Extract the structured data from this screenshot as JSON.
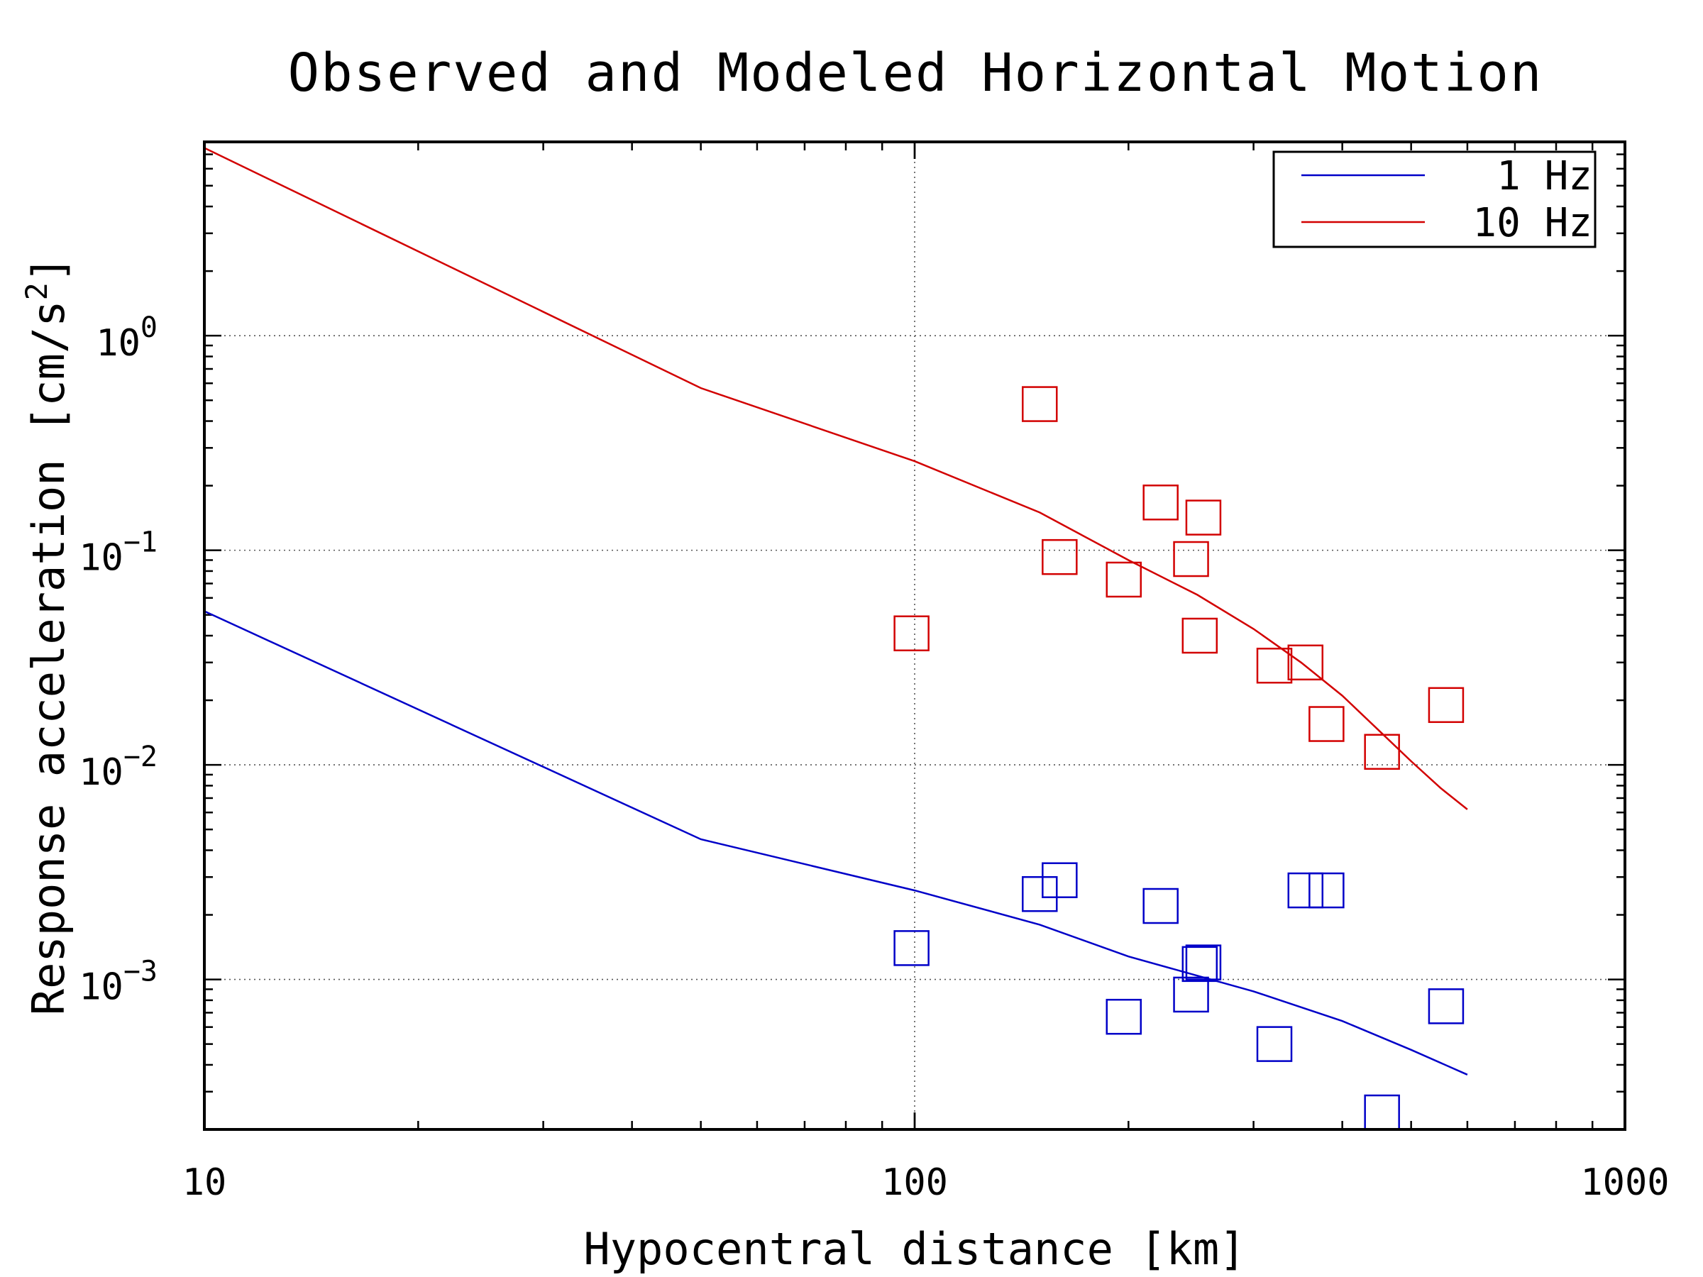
{
  "chart_data": {
    "type": "line",
    "title": "Observed and Modeled Horizontal Motion",
    "xlabel": "Hypocentral distance [km]",
    "ylabel_main": "Response acceleration [cm/s",
    "ylabel_sup": "2",
    "ylabel_end": "]",
    "xscale": "log",
    "yscale": "log",
    "xlim": [
      10,
      1000
    ],
    "ylim": [
      0.0002,
      8
    ],
    "x_ticks": [
      {
        "value": 10,
        "label": "10"
      },
      {
        "value": 100,
        "label": "100"
      },
      {
        "value": 1000,
        "label": "1000"
      }
    ],
    "y_ticks": [
      {
        "value": 1,
        "base": "10",
        "exp": "0"
      },
      {
        "value": 0.1,
        "base": "10",
        "exp": "−1"
      },
      {
        "value": 0.01,
        "base": "10",
        "exp": "−2"
      },
      {
        "value": 0.001,
        "base": "10",
        "exp": "−3"
      }
    ],
    "grid": {
      "x_major": [
        100
      ],
      "y_major": [
        1,
        0.1,
        0.01,
        0.001
      ],
      "style": "dotted"
    },
    "legend_position": "top-right",
    "series": [
      {
        "name": "1 Hz",
        "color": "#0000c8",
        "kind": "line",
        "x": [
          10,
          50,
          100,
          150,
          200,
          300,
          400,
          500,
          600
        ],
        "y": [
          0.052,
          0.0045,
          0.0026,
          0.0018,
          0.00128,
          0.00088,
          0.00064,
          0.00047,
          0.00036
        ]
      },
      {
        "name": "10 Hz",
        "color": "#d20000",
        "kind": "line",
        "x": [
          10,
          50,
          100,
          150,
          200,
          250,
          300,
          350,
          400,
          450,
          500,
          550,
          600
        ],
        "y": [
          7.5,
          0.57,
          0.26,
          0.15,
          0.09,
          0.062,
          0.043,
          0.03,
          0.021,
          0.0145,
          0.0104,
          0.0078,
          0.0062
        ]
      },
      {
        "name": "",
        "color": "#d20000",
        "kind": "markers",
        "x": [
          99,
          150,
          160,
          197,
          222,
          245,
          252,
          255,
          321,
          355,
          380,
          455,
          560
        ],
        "y": [
          0.041,
          0.48,
          0.093,
          0.073,
          0.167,
          0.091,
          0.04,
          0.142,
          0.029,
          0.03,
          0.0155,
          0.0115,
          0.019
        ]
      },
      {
        "name": "",
        "color": "#0000c8",
        "kind": "markers",
        "x": [
          99,
          150,
          160,
          197,
          222,
          245,
          252,
          255,
          321,
          355,
          380,
          455,
          560
        ],
        "y": [
          0.0014,
          0.0025,
          0.0029,
          0.00067,
          0.0022,
          0.00085,
          0.00118,
          0.0012,
          0.0005,
          0.0026,
          0.0026,
          0.00024,
          0.00075
        ]
      }
    ],
    "legend_entries": [
      {
        "label": "1 Hz",
        "color": "#0000c8"
      },
      {
        "label": "10 Hz",
        "color": "#d20000"
      }
    ]
  }
}
